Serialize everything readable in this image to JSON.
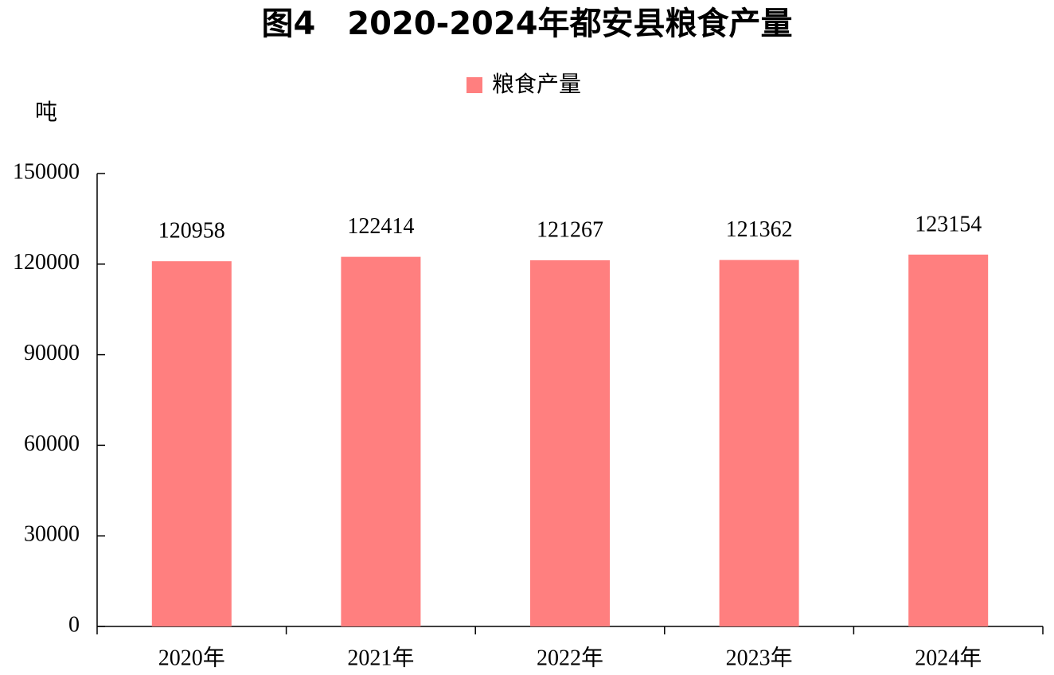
{
  "chart_data": {
    "type": "bar",
    "title": "图4　2020-2024年都安县粮食产量",
    "y_label": "吨",
    "categories": [
      "2020年",
      "2021年",
      "2022年",
      "2023年",
      "2024年"
    ],
    "series": [
      {
        "name": "粮食产量",
        "color": "#ff7f7f",
        "values": [
          120958,
          122414,
          121267,
          121362,
          123154
        ]
      }
    ],
    "ylim": [
      0,
      150000
    ],
    "yticks": [
      0,
      30000,
      60000,
      90000,
      120000,
      150000
    ],
    "legend": "top",
    "data_labels": true
  }
}
